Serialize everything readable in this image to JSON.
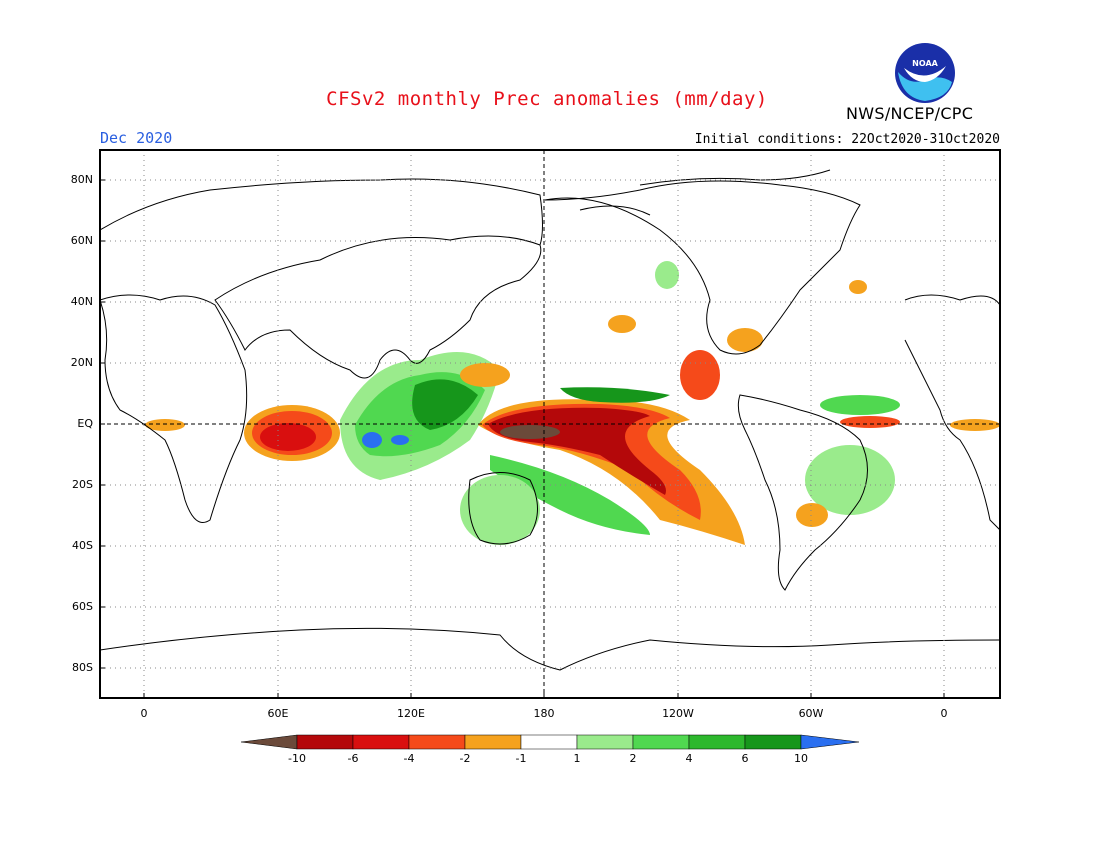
{
  "header": {
    "title": "CFSv2 monthly Prec anomalies (mm/day)",
    "month": "Dec 2020",
    "initial_conditions": "Initial conditions: 22Oct2020-31Oct2020",
    "agency": "NWS/NCEP/CPC",
    "logo_text": "NOAA"
  },
  "map": {
    "lat_labels": [
      "80N",
      "60N",
      "40N",
      "20N",
      "EQ",
      "20S",
      "40S",
      "60S",
      "80S"
    ],
    "lon_labels": [
      "0",
      "60E",
      "120E",
      "180",
      "120W",
      "60W",
      "0"
    ],
    "lon_range": [
      -20,
      385
    ],
    "lat_range": [
      -90,
      90
    ]
  },
  "colorbar": {
    "labels": [
      "-10",
      "-6",
      "-4",
      "-2",
      "-1",
      "1",
      "2",
      "4",
      "6",
      "10"
    ],
    "colors": [
      "#6b4a3a",
      "#b4080a",
      "#d90f0f",
      "#f54a1a",
      "#f5a21e",
      "#ffffff",
      "#9aeb8c",
      "#50d850",
      "#2db82d",
      "#16961b",
      "#2a6ff0"
    ]
  },
  "colors": {
    "title": "#e8101a",
    "month": "#2a5fe0"
  }
}
